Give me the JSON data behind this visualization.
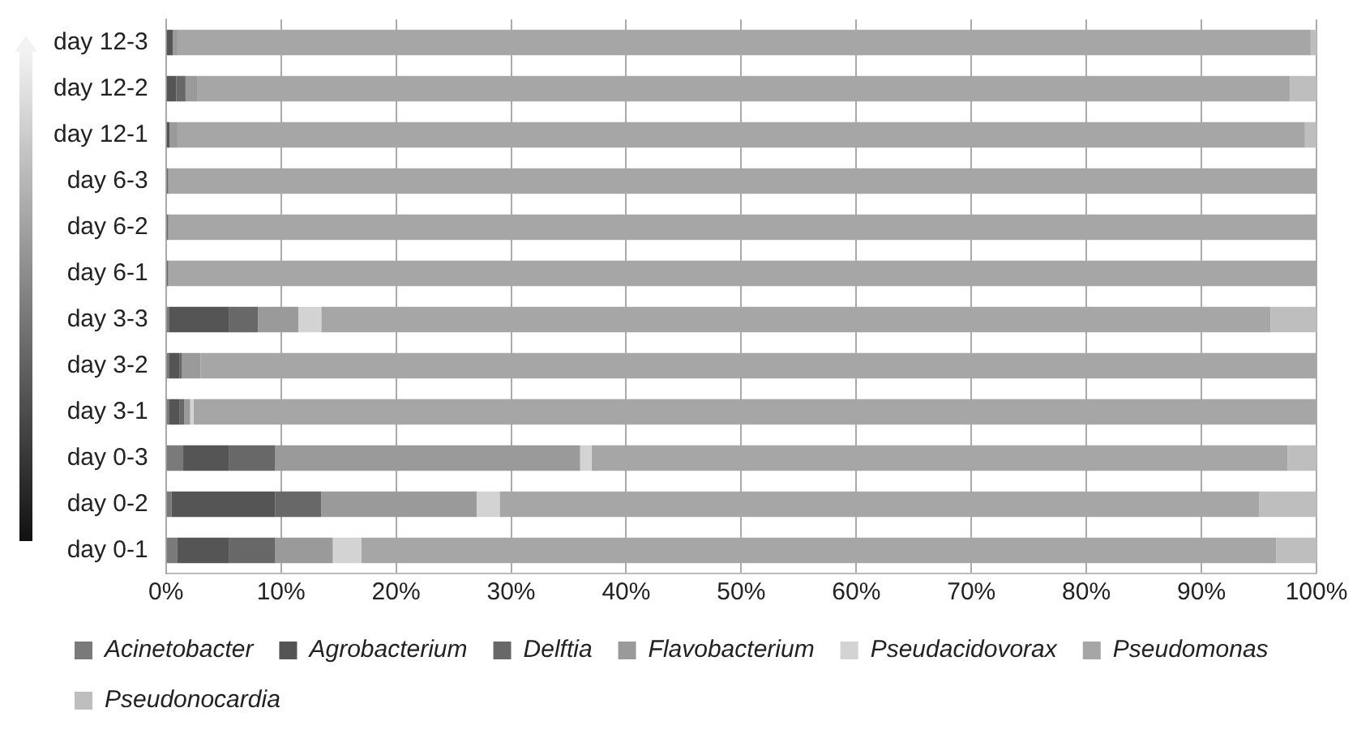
{
  "chart_data": {
    "type": "bar",
    "orientation": "horizontal",
    "stacked": true,
    "categories": [
      "day 12-3",
      "day 12-2",
      "day 12-1",
      "day 6-3",
      "day 6-2",
      "day 6-1",
      "day 3-3",
      "day 3-2",
      "day 3-1",
      "day 0-3",
      "day 0-2",
      "day 0-1"
    ],
    "series": [
      {
        "name": "Acinetobacter",
        "color": "#7a7a7a",
        "values": [
          0,
          0,
          0,
          0,
          0,
          0,
          0.3,
          0.3,
          0.3,
          1.5,
          0.5,
          1
        ]
      },
      {
        "name": "Agrobacterium",
        "color": "#555555",
        "values": [
          0.6,
          0.9,
          0.3,
          0,
          0,
          0,
          5.2,
          0.9,
          0.9,
          4,
          9,
          4.5
        ]
      },
      {
        "name": "Delftia",
        "color": "#686868",
        "values": [
          0,
          0.8,
          0,
          0.2,
          0.2,
          0.2,
          2.5,
          0.2,
          0.4,
          4,
          4,
          4
        ]
      },
      {
        "name": "Flavobacterium",
        "color": "#9a9a9a",
        "values": [
          0.4,
          1,
          0.7,
          0,
          0,
          0,
          3.5,
          1.6,
          0.5,
          26.5,
          13.5,
          5
        ]
      },
      {
        "name": "Pseudacidovorax",
        "color": "#d3d3d3",
        "values": [
          0,
          0,
          0,
          0,
          0,
          0,
          2,
          0,
          0.3,
          1,
          2,
          2.5
        ]
      },
      {
        "name": "Pseudomonas",
        "color": "#a6a6a6",
        "values": [
          98.5,
          95,
          98,
          99.8,
          99.8,
          99.8,
          82.5,
          97,
          97.6,
          60.5,
          66,
          79.5
        ]
      },
      {
        "name": "Pseudonocardia",
        "color": "#bebebe",
        "values": [
          0.5,
          2.3,
          1,
          0,
          0,
          0,
          4,
          0,
          0,
          2.5,
          5,
          3.5
        ]
      }
    ],
    "xlim": [
      0,
      100
    ],
    "xticks": [
      {
        "value": 0,
        "label": "0%"
      },
      {
        "value": 10,
        "label": "10%"
      },
      {
        "value": 20,
        "label": "20%"
      },
      {
        "value": 30,
        "label": "30%"
      },
      {
        "value": 40,
        "label": "40%"
      },
      {
        "value": 50,
        "label": "50%"
      },
      {
        "value": 60,
        "label": "60%"
      },
      {
        "value": 70,
        "label": "70%"
      },
      {
        "value": 80,
        "label": "80%"
      },
      {
        "value": 90,
        "label": "90%"
      },
      {
        "value": 100,
        "label": "100%"
      }
    ],
    "grid": "x",
    "legend": "bottom"
  }
}
